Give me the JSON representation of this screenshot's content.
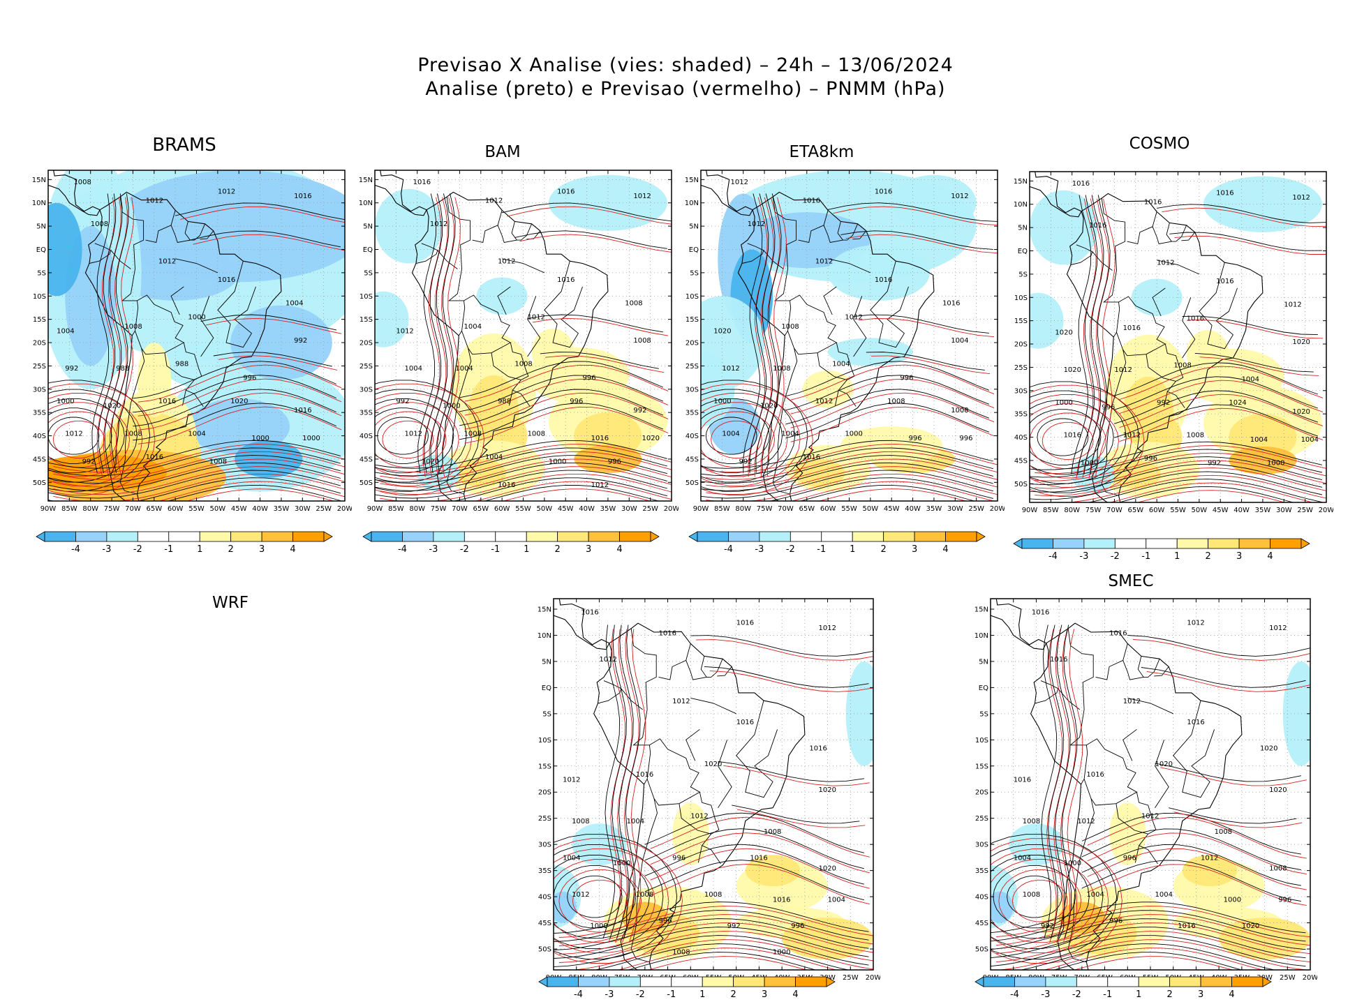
{
  "header": {
    "title_line1": "Previsao X Analise (vies: shaded) – 24h – 13/06/2024",
    "title_line2": "Analise (preto) e Previsao (vermelho) – PNMM (hPa)"
  },
  "colors": {
    "analysis_contour": "#000000",
    "forecast_contour": "#d62020",
    "bias_neg_4": "#4ab4ee",
    "bias_neg_3": "#96d2fa",
    "bias_neg_2": "#b4f0fa",
    "bias_neutral": "#ffffff",
    "bias_pos_2": "#fffaaa",
    "bias_pos_3": "#ffe878",
    "bias_pos_4": "#ffc03c",
    "bias_pos_5": "#ffa000",
    "grid": "#999999"
  },
  "axes": {
    "lat_ticks": [
      "15N",
      "10N",
      "5N",
      "EQ",
      "5S",
      "10S",
      "15S",
      "20S",
      "25S",
      "30S",
      "35S",
      "40S",
      "45S",
      "50S"
    ],
    "lon_ticks": [
      "90W",
      "85W",
      "80W",
      "75W",
      "70W",
      "65W",
      "60W",
      "55W",
      "50W",
      "45W",
      "40W",
      "35W",
      "30W",
      "25W",
      "20W"
    ]
  },
  "colorbar": {
    "labels": [
      "-4",
      "-3",
      "-2",
      "-1",
      "1",
      "2",
      "3",
      "4"
    ]
  },
  "panels": [
    {
      "id": "brams",
      "title": "BRAMS",
      "bias": "negative",
      "has_map": true,
      "isobars": [
        {
          "text": "1008",
          "color": "black"
        },
        {
          "text": "1012",
          "color": "red"
        },
        {
          "text": "1012",
          "color": "black"
        },
        {
          "text": "1016",
          "color": "black"
        },
        {
          "text": "1008",
          "color": "black"
        },
        {
          "text": "1012",
          "color": "black"
        },
        {
          "text": "1016",
          "color": "black"
        },
        {
          "text": "1004",
          "color": "red"
        },
        {
          "text": "1004",
          "color": "black"
        },
        {
          "text": "1008",
          "color": "black"
        },
        {
          "text": "1000",
          "color": "red"
        },
        {
          "text": "992",
          "color": "red"
        },
        {
          "text": "992",
          "color": "black"
        },
        {
          "text": "988",
          "color": "red"
        },
        {
          "text": "988",
          "color": "black"
        },
        {
          "text": "996",
          "color": "black"
        },
        {
          "text": "1000",
          "color": "black"
        },
        {
          "text": "1020",
          "color": "black"
        },
        {
          "text": "1016",
          "color": "red"
        },
        {
          "text": "1020",
          "color": "black"
        },
        {
          "text": "1016",
          "color": "black"
        },
        {
          "text": "1012",
          "color": "black"
        },
        {
          "text": "1008",
          "color": "black"
        },
        {
          "text": "1004",
          "color": "black"
        },
        {
          "text": "1000",
          "color": "black"
        },
        {
          "text": "1000",
          "color": "red"
        },
        {
          "text": "992",
          "color": "black"
        },
        {
          "text": "1016",
          "color": "black"
        },
        {
          "text": "1008",
          "color": "red"
        }
      ]
    },
    {
      "id": "bam",
      "title": "BAM",
      "bias": "positive",
      "has_map": true,
      "isobars": [
        {
          "text": "1016",
          "color": "red"
        },
        {
          "text": "1012",
          "color": "red"
        },
        {
          "text": "1016",
          "color": "black"
        },
        {
          "text": "1012",
          "color": "black"
        },
        {
          "text": "1012",
          "color": "red"
        },
        {
          "text": "1012",
          "color": "black"
        },
        {
          "text": "1016",
          "color": "black"
        },
        {
          "text": "1008",
          "color": "black"
        },
        {
          "text": "1012",
          "color": "black"
        },
        {
          "text": "1004",
          "color": "black"
        },
        {
          "text": "1012",
          "color": "red"
        },
        {
          "text": "1008",
          "color": "red"
        },
        {
          "text": "1004",
          "color": "red"
        },
        {
          "text": "1004",
          "color": "black"
        },
        {
          "text": "1008",
          "color": "black"
        },
        {
          "text": "996",
          "color": "black"
        },
        {
          "text": "992",
          "color": "red"
        },
        {
          "text": "1000",
          "color": "black"
        },
        {
          "text": "988",
          "color": "red"
        },
        {
          "text": "996",
          "color": "black"
        },
        {
          "text": "992",
          "color": "black"
        },
        {
          "text": "1012",
          "color": "black"
        },
        {
          "text": "1008",
          "color": "black"
        },
        {
          "text": "1008",
          "color": "red"
        },
        {
          "text": "1016",
          "color": "black"
        },
        {
          "text": "1020",
          "color": "red"
        },
        {
          "text": "1020",
          "color": "black"
        },
        {
          "text": "1004",
          "color": "black"
        },
        {
          "text": "1000",
          "color": "black"
        },
        {
          "text": "996",
          "color": "black"
        },
        {
          "text": "1016",
          "color": "red"
        },
        {
          "text": "1012",
          "color": "black"
        }
      ]
    },
    {
      "id": "eta8km",
      "title": "ETA8km",
      "bias": "negative-north",
      "has_map": true,
      "isobars": [
        {
          "text": "1012",
          "color": "red"
        },
        {
          "text": "1016",
          "color": "red"
        },
        {
          "text": "1016",
          "color": "black"
        },
        {
          "text": "1012",
          "color": "black"
        },
        {
          "text": "1012",
          "color": "red"
        },
        {
          "text": "1012",
          "color": "black"
        },
        {
          "text": "1016",
          "color": "black"
        },
        {
          "text": "1016",
          "color": "red"
        },
        {
          "text": "1020",
          "color": "black"
        },
        {
          "text": "1008",
          "color": "black"
        },
        {
          "text": "1012",
          "color": "black"
        },
        {
          "text": "1004",
          "color": "black"
        },
        {
          "text": "1012",
          "color": "red"
        },
        {
          "text": "1008",
          "color": "black"
        },
        {
          "text": "1004",
          "color": "black"
        },
        {
          "text": "996",
          "color": "black"
        },
        {
          "text": "1000",
          "color": "black"
        },
        {
          "text": "1020",
          "color": "black"
        },
        {
          "text": "1012",
          "color": "black"
        },
        {
          "text": "1008",
          "color": "black"
        },
        {
          "text": "1008",
          "color": "red"
        },
        {
          "text": "1004",
          "color": "black"
        },
        {
          "text": "1004",
          "color": "red"
        },
        {
          "text": "1000",
          "color": "red"
        },
        {
          "text": "996",
          "color": "black"
        },
        {
          "text": "996",
          "color": "red"
        },
        {
          "text": "992",
          "color": "black"
        },
        {
          "text": "1016",
          "color": "black"
        }
      ]
    },
    {
      "id": "cosmo",
      "title": "COSMO",
      "bias": "positive",
      "has_map": true,
      "isobars": [
        {
          "text": "1016",
          "color": "red"
        },
        {
          "text": "1016",
          "color": "black"
        },
        {
          "text": "1016",
          "color": "black"
        },
        {
          "text": "1012",
          "color": "black"
        },
        {
          "text": "1016",
          "color": "black"
        },
        {
          "text": "1012",
          "color": "black"
        },
        {
          "text": "1016",
          "color": "red"
        },
        {
          "text": "1012",
          "color": "red"
        },
        {
          "text": "1020",
          "color": "black"
        },
        {
          "text": "1016",
          "color": "red"
        },
        {
          "text": "1016",
          "color": "black"
        },
        {
          "text": "1020",
          "color": "black"
        },
        {
          "text": "1020",
          "color": "red"
        },
        {
          "text": "1012",
          "color": "black"
        },
        {
          "text": "1008",
          "color": "black"
        },
        {
          "text": "1004",
          "color": "black"
        },
        {
          "text": "1000",
          "color": "black"
        },
        {
          "text": "996",
          "color": "black"
        },
        {
          "text": "992",
          "color": "red"
        },
        {
          "text": "1024",
          "color": "red"
        },
        {
          "text": "1020",
          "color": "red"
        },
        {
          "text": "1016",
          "color": "black"
        },
        {
          "text": "1012",
          "color": "black"
        },
        {
          "text": "1008",
          "color": "black"
        },
        {
          "text": "1004",
          "color": "black"
        },
        {
          "text": "1004",
          "color": "red"
        },
        {
          "text": "1000",
          "color": "black"
        },
        {
          "text": "996",
          "color": "black"
        },
        {
          "text": "992",
          "color": "black"
        },
        {
          "text": "1000",
          "color": "red"
        }
      ]
    },
    {
      "id": "wrf",
      "title": "WRF",
      "has_map": false,
      "isobars": []
    },
    {
      "id": "wrf_map",
      "title": "",
      "bias": "positive-south",
      "has_map": true,
      "isobars": [
        {
          "text": "1016",
          "color": "red"
        },
        {
          "text": "1016",
          "color": "black"
        },
        {
          "text": "1016",
          "color": "red"
        },
        {
          "text": "1012",
          "color": "black"
        },
        {
          "text": "1012",
          "color": "black"
        },
        {
          "text": "1012",
          "color": "black"
        },
        {
          "text": "1016",
          "color": "black"
        },
        {
          "text": "1016",
          "color": "red"
        },
        {
          "text": "1012",
          "color": "black"
        },
        {
          "text": "1016",
          "color": "black"
        },
        {
          "text": "1020",
          "color": "red"
        },
        {
          "text": "1020",
          "color": "black"
        },
        {
          "text": "1008",
          "color": "black"
        },
        {
          "text": "1004",
          "color": "black"
        },
        {
          "text": "1012",
          "color": "black"
        },
        {
          "text": "1008",
          "color": "black"
        },
        {
          "text": "1004",
          "color": "black"
        },
        {
          "text": "1000",
          "color": "black"
        },
        {
          "text": "996",
          "color": "black"
        },
        {
          "text": "1016",
          "color": "black"
        },
        {
          "text": "1020",
          "color": "black"
        },
        {
          "text": "1012",
          "color": "black"
        },
        {
          "text": "1008",
          "color": "red"
        },
        {
          "text": "1008",
          "color": "black"
        },
        {
          "text": "1016",
          "color": "red"
        },
        {
          "text": "1004",
          "color": "black"
        },
        {
          "text": "1000",
          "color": "black"
        },
        {
          "text": "996",
          "color": "black"
        },
        {
          "text": "992",
          "color": "black"
        },
        {
          "text": "996",
          "color": "red"
        },
        {
          "text": "1008",
          "color": "red"
        },
        {
          "text": "1000",
          "color": "black"
        }
      ]
    },
    {
      "id": "smec",
      "title": "SMEC",
      "bias": "positive-south",
      "has_map": true,
      "isobars": [
        {
          "text": "1016",
          "color": "red"
        },
        {
          "text": "1016",
          "color": "black"
        },
        {
          "text": "1012",
          "color": "red"
        },
        {
          "text": "1012",
          "color": "black"
        },
        {
          "text": "1016",
          "color": "black"
        },
        {
          "text": "1012",
          "color": "red"
        },
        {
          "text": "1016",
          "color": "red"
        },
        {
          "text": "1020",
          "color": "black"
        },
        {
          "text": "1016",
          "color": "black"
        },
        {
          "text": "1016",
          "color": "red"
        },
        {
          "text": "1020",
          "color": "red"
        },
        {
          "text": "1020",
          "color": "black"
        },
        {
          "text": "1008",
          "color": "black"
        },
        {
          "text": "1012",
          "color": "black"
        },
        {
          "text": "1012",
          "color": "red"
        },
        {
          "text": "1008",
          "color": "black"
        },
        {
          "text": "1004",
          "color": "black"
        },
        {
          "text": "1000",
          "color": "black"
        },
        {
          "text": "996",
          "color": "black"
        },
        {
          "text": "1012",
          "color": "black"
        },
        {
          "text": "1008",
          "color": "black"
        },
        {
          "text": "1008",
          "color": "red"
        },
        {
          "text": "1004",
          "color": "red"
        },
        {
          "text": "1004",
          "color": "black"
        },
        {
          "text": "1000",
          "color": "black"
        },
        {
          "text": "996",
          "color": "black"
        },
        {
          "text": "992",
          "color": "red"
        },
        {
          "text": "996",
          "color": "red"
        },
        {
          "text": "1016",
          "color": "black"
        },
        {
          "text": "1020",
          "color": "black"
        }
      ]
    }
  ]
}
